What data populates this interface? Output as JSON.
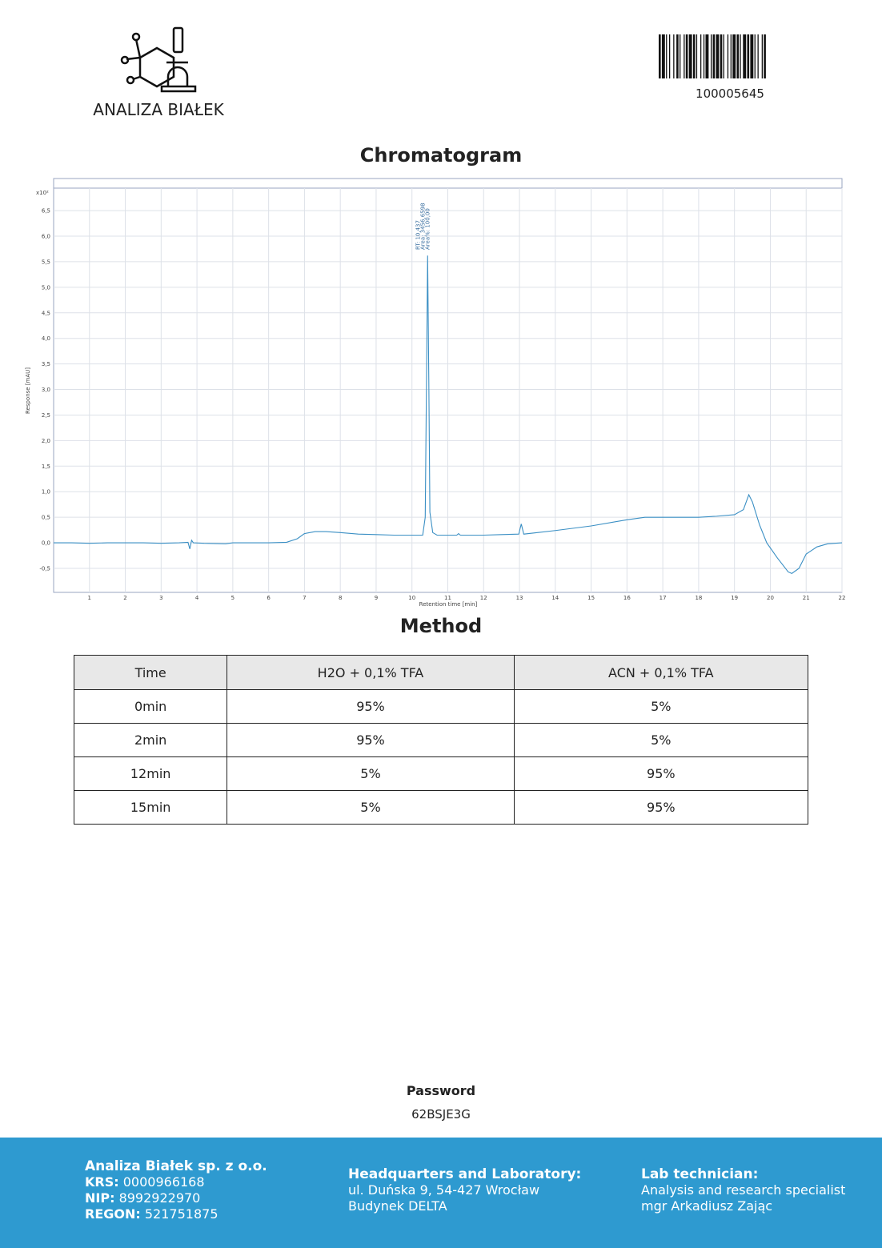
{
  "header": {
    "logo_text": "ANALIZA BIAŁEK",
    "barcode_number": "100005645"
  },
  "chart_data": {
    "type": "line",
    "title": "Chromatogram",
    "x_label": "Retention time [min]",
    "y_label": "Response [mAU]",
    "y_multiplier": "x10²",
    "annotations": [
      "RT: 10,437",
      "Area: 3456,6598",
      "Area%: 100,00"
    ],
    "x": [
      0,
      0.5,
      1,
      1.5,
      2,
      2.5,
      3,
      3.5,
      3.75,
      3.8,
      3.85,
      3.9,
      4.2,
      4.8,
      5,
      5.5,
      6,
      6.5,
      6.8,
      7,
      7.3,
      7.6,
      8,
      8.5,
      9,
      9.5,
      10,
      10.3,
      10.37,
      10.41,
      10.437,
      10.47,
      10.5,
      10.58,
      10.7,
      11,
      11.25,
      11.3,
      11.35,
      12,
      12.5,
      12.98,
      13.05,
      13.12,
      13.5,
      14,
      15,
      16,
      16.5,
      17,
      18,
      18.5,
      19,
      19.25,
      19.4,
      19.5,
      19.7,
      19.9,
      20.2,
      20.5,
      20.6,
      20.8,
      21,
      21.3,
      21.6,
      22
    ],
    "series": [
      {
        "color": "#3a8fc4",
        "values": [
          0,
          0,
          -0.01,
          0,
          0,
          0,
          -0.01,
          0,
          0.01,
          -0.12,
          0.05,
          0,
          -0.01,
          -0.02,
          0,
          0,
          0,
          0.01,
          0.08,
          0.18,
          0.22,
          0.22,
          0.2,
          0.17,
          0.16,
          0.15,
          0.15,
          0.15,
          0.5,
          3.5,
          5.62,
          3.2,
          0.6,
          0.2,
          0.15,
          0.15,
          0.15,
          0.18,
          0.15,
          0.15,
          0.16,
          0.17,
          0.37,
          0.17,
          0.2,
          0.24,
          0.33,
          0.45,
          0.5,
          0.5,
          0.5,
          0.52,
          0.55,
          0.65,
          0.94,
          0.8,
          0.35,
          0,
          -0.3,
          -0.57,
          -0.6,
          -0.5,
          -0.22,
          -0.08,
          -0.02,
          0
        ]
      }
    ],
    "xlim": [
      0,
      22
    ],
    "ylim": [
      -0.97,
      6.94
    ],
    "xticks": [
      1,
      2,
      3,
      4,
      5,
      6,
      7,
      8,
      9,
      10,
      11,
      12,
      13,
      14,
      15,
      16,
      17,
      18,
      19,
      20,
      21,
      22
    ],
    "yticks": [
      {
        "value": -0.5,
        "label": "-0,5"
      },
      {
        "value": 0,
        "label": "0,0"
      },
      {
        "value": 0.5,
        "label": "0,5"
      },
      {
        "value": 1,
        "label": "1,0"
      },
      {
        "value": 1.5,
        "label": "1,5"
      },
      {
        "value": 2,
        "label": "2,0"
      },
      {
        "value": 2.5,
        "label": "2,5"
      },
      {
        "value": 3,
        "label": "3,0"
      },
      {
        "value": 3.5,
        "label": "3,5"
      },
      {
        "value": 4,
        "label": "4,0"
      },
      {
        "value": 4.5,
        "label": "4,5"
      },
      {
        "value": 5,
        "label": "5,0"
      },
      {
        "value": 5.5,
        "label": "5,5"
      },
      {
        "value": 6,
        "label": "6,0"
      },
      {
        "value": 6.5,
        "label": "6,5"
      }
    ],
    "grid": true
  },
  "method": {
    "title": "Method",
    "header": [
      "Time",
      "H2O + 0,1% TFA",
      "ACN + 0,1% TFA"
    ],
    "rows": [
      [
        "0min",
        "95%",
        "5%"
      ],
      [
        "2min",
        "95%",
        "5%"
      ],
      [
        "12min",
        "5%",
        "95%"
      ],
      [
        "15min",
        "5%",
        "95%"
      ]
    ]
  },
  "password": {
    "label": "Password",
    "value": "62BSJE3G"
  },
  "footer": {
    "company": {
      "name": "Analiza Białek sp. z o.o.",
      "fields": [
        {
          "label": "KRS:",
          "value": "0000966168"
        },
        {
          "label": "NIP:",
          "value": "8992922970"
        },
        {
          "label": "REGON:",
          "value": "521751875"
        }
      ]
    },
    "headquarters": {
      "title": "Headquarters and Laboratory:",
      "lines": [
        "ul. Duńska 9, 54-427 Wrocław",
        "Budynek DELTA"
      ]
    },
    "technician": {
      "title": "Lab technician:",
      "lines": [
        "Analysis and research specialist",
        "mgr Arkadiusz Zając"
      ]
    }
  }
}
